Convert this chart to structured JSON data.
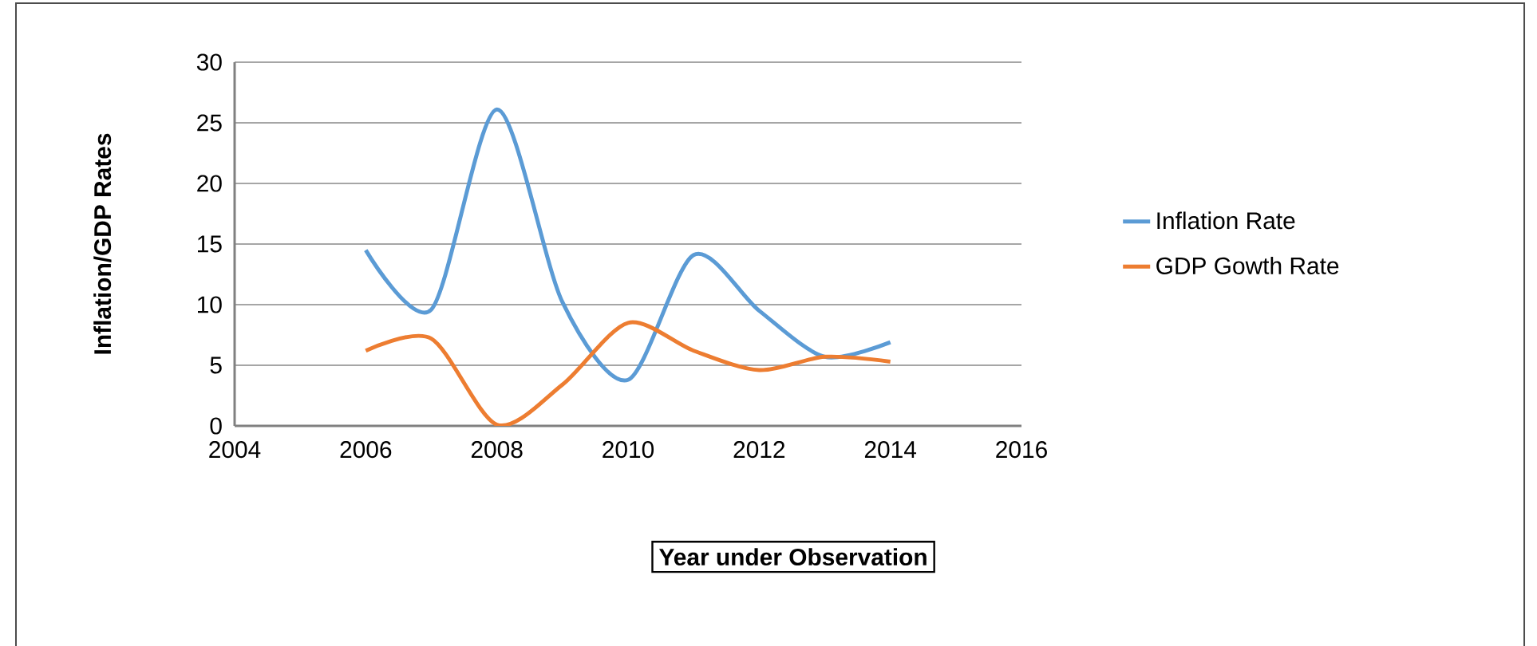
{
  "chart_data": {
    "type": "line",
    "xlabel": "Year under Observation",
    "ylabel": "Inflation/GDP Rates",
    "x": [
      2006,
      2007,
      2008,
      2009,
      2010,
      2011,
      2012,
      2013,
      2014
    ],
    "series": [
      {
        "name": "Inflation Rate",
        "color": "#5b9bd5",
        "values": [
          14.5,
          9.6,
          26.1,
          10.2,
          3.8,
          14.1,
          9.5,
          5.7,
          6.9
        ]
      },
      {
        "name": "GDP Gowth Rate",
        "color": "#ed7d31",
        "values": [
          6.2,
          7.2,
          0.1,
          3.4,
          8.5,
          6.2,
          4.6,
          5.7,
          5.3
        ]
      }
    ],
    "xlim": [
      2004,
      2016
    ],
    "xticks": [
      2004,
      2006,
      2008,
      2010,
      2012,
      2014,
      2016
    ],
    "ylim": [
      0,
      30
    ],
    "yticks": [
      0,
      5,
      10,
      15,
      20,
      25,
      30
    ],
    "grid": "y",
    "legend": "right",
    "marker": "none",
    "line_style": "solid"
  }
}
